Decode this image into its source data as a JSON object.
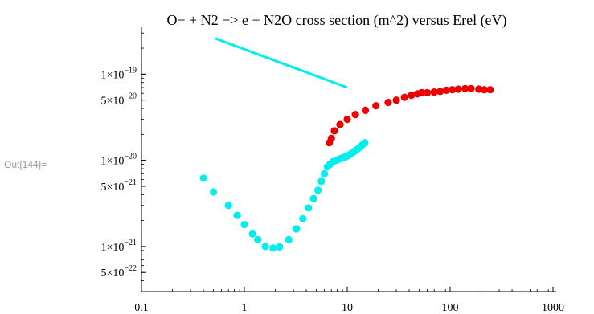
{
  "cell_label": "Out[144]=",
  "chart_data": {
    "type": "scatter",
    "title": "O− + N2 −> e + N2O cross section (m^2) versus Erel (eV)",
    "xlabel": "",
    "ylabel": "",
    "x_scale": "log",
    "y_scale": "log",
    "xlim": [
      0.1,
      1000
    ],
    "ylim": [
      3e-22,
      3.5e-19
    ],
    "grid": false,
    "x_ticks": [
      {
        "value": 0.1,
        "label": "0.1"
      },
      {
        "value": 1,
        "label": "1"
      },
      {
        "value": 10,
        "label": "10"
      },
      {
        "value": 100,
        "label": "100"
      },
      {
        "value": 1000,
        "label": "1000"
      }
    ],
    "y_ticks": [
      {
        "value": 5e-22,
        "mant": "5",
        "exp": "−22"
      },
      {
        "value": 1e-21,
        "mant": "1",
        "exp": "−21"
      },
      {
        "value": 5e-21,
        "mant": "5",
        "exp": "−21"
      },
      {
        "value": 1e-20,
        "mant": "1",
        "exp": "−20"
      },
      {
        "value": 5e-20,
        "mant": "5",
        "exp": "−20"
      },
      {
        "value": 1e-19,
        "mant": "1",
        "exp": "−19"
      }
    ],
    "colors": {
      "red": "#ee0000",
      "cyan": "#00eeee"
    },
    "series": [
      {
        "color": "#ee0000",
        "kind": "points",
        "points": [
          [
            6.7,
            1.6e-20
          ],
          [
            7.0,
            1.8e-20
          ],
          [
            7.5,
            2.2e-20
          ],
          [
            8.5,
            2.6e-20
          ],
          [
            10,
            3e-20
          ],
          [
            12,
            3.4e-20
          ],
          [
            15,
            3.8e-20
          ],
          [
            19,
            4.3e-20
          ],
          [
            25,
            4.7e-20
          ],
          [
            30,
            5e-20
          ],
          [
            36,
            5.4e-20
          ],
          [
            42,
            5.7e-20
          ],
          [
            48,
            5.9e-20
          ],
          [
            53,
            6.1e-20
          ],
          [
            60,
            6.1e-20
          ],
          [
            70,
            6.2e-20
          ],
          [
            80,
            6.3e-20
          ],
          [
            92,
            6.5e-20
          ],
          [
            105,
            6.6e-20
          ],
          [
            120,
            6.7e-20
          ],
          [
            140,
            6.8e-20
          ],
          [
            160,
            6.8e-20
          ],
          [
            190,
            6.7e-20
          ],
          [
            215,
            6.6e-20
          ],
          [
            245,
            6.6e-20
          ]
        ]
      },
      {
        "color": "#00eeee",
        "kind": "points",
        "points": [
          [
            0.4,
            6.2e-21
          ],
          [
            0.5,
            4.3e-21
          ],
          [
            0.7,
            3e-21
          ],
          [
            0.85,
            2.3e-21
          ],
          [
            1.0,
            1.8e-21
          ],
          [
            1.2,
            1.4e-21
          ],
          [
            1.35,
            1.2e-21
          ],
          [
            1.6,
            1e-21
          ],
          [
            1.9,
            9.6e-22
          ],
          [
            2.2,
            9.9e-22
          ],
          [
            2.7,
            1.2e-21
          ],
          [
            3.2,
            1.6e-21
          ],
          [
            3.7,
            2.1e-21
          ],
          [
            4.2,
            2.8e-21
          ],
          [
            4.7,
            3.6e-21
          ],
          [
            5.2,
            4.5e-21
          ],
          [
            5.6,
            5.7e-21
          ],
          [
            6.0,
            7e-21
          ],
          [
            6.4,
            8.4e-21
          ],
          [
            6.8,
            9e-21
          ],
          [
            7.3,
            9.7e-21
          ],
          [
            7.8,
            1e-20
          ],
          [
            8.3,
            1.03e-20
          ],
          [
            8.8,
            1.06e-20
          ],
          [
            9.4,
            1.09e-20
          ],
          [
            10.0,
            1.12e-20
          ],
          [
            10.6,
            1.17e-20
          ],
          [
            11.2,
            1.22e-20
          ],
          [
            11.8,
            1.28e-20
          ],
          [
            12.5,
            1.35e-20
          ],
          [
            13.3,
            1.43e-20
          ],
          [
            14.1,
            1.52e-20
          ],
          [
            14.8,
            1.6e-20
          ]
        ]
      },
      {
        "color": "#00eeee",
        "kind": "line",
        "points": [
          [
            0.52,
            2.6e-19
          ],
          [
            10,
            7e-20
          ]
        ]
      }
    ]
  }
}
